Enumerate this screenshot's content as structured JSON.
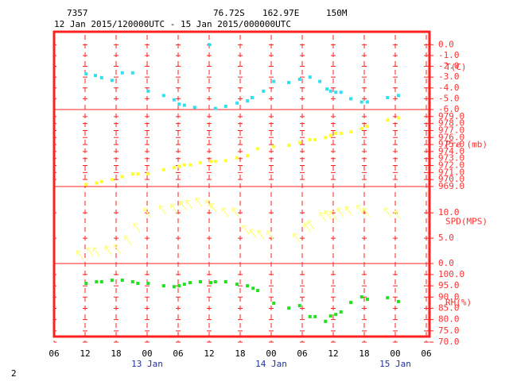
{
  "header": {
    "station": "7357",
    "latitude": "76.72S",
    "longitude": "162.97E",
    "elevation": "150M",
    "period": "12 Jan 2015/120000UTC - 15 Jan 2015/000000UTC"
  },
  "page_number": "2",
  "time_axis": {
    "xlim": [
      6,
      78
    ],
    "xticks": [
      {
        "value": 6,
        "label": "06"
      },
      12,
      18,
      {
        "value": 24,
        "label": "00"
      },
      {
        "value": 30,
        "label": "06"
      },
      {
        "value": 36,
        "label": "12"
      },
      {
        "value": 42,
        "label": "18"
      },
      {
        "value": 48,
        "label": "00"
      },
      {
        "value": 54,
        "label": "06"
      },
      {
        "value": 60,
        "label": "12"
      },
      {
        "value": 66,
        "label": "18"
      },
      {
        "value": 72,
        "label": "00"
      },
      {
        "value": 78,
        "label": "06"
      }
    ],
    "date_labels": [
      {
        "value": 24,
        "label": "13 Jan"
      },
      {
        "value": 48,
        "label": "14 Jan"
      },
      {
        "value": 72,
        "label": "15 Jan"
      }
    ]
  },
  "chart_data": [
    {
      "type": "scatter",
      "ylabel": "T(C)",
      "color": "#30e0f0",
      "xlim": [
        6,
        78
      ],
      "ylim": [
        -6,
        1.2
      ],
      "yticks": [
        {
          "value": 0,
          "label": "0.0"
        },
        {
          "value": -1,
          "label": "-1.0"
        },
        {
          "value": -2,
          "label": "-2.0"
        },
        {
          "value": -3,
          "label": "-3.0"
        },
        {
          "value": -4,
          "label": "-4.0"
        },
        {
          "value": -5,
          "label": "-5.0"
        },
        {
          "value": -6,
          "label": "-6.0"
        }
      ],
      "x": [
        12.2,
        14,
        15.2,
        17.2,
        19.2,
        21.2,
        24.2,
        27.2,
        29.2,
        30.2,
        31.2,
        33.2,
        36,
        37.2,
        39.2,
        41.4,
        43.4,
        44.3,
        46.5,
        48.5,
        51.4,
        53.5,
        55.5,
        57.4,
        58.8,
        59.5,
        60.5,
        61.5,
        63.4,
        65.5,
        66.6,
        70.5,
        72.6
      ],
      "values": [
        -2.7,
        -2.85,
        -3.05,
        -3.3,
        -2.6,
        -2.6,
        -4.3,
        -4.7,
        -5.1,
        -5.5,
        -5.6,
        -5.8,
        0.0,
        -5.9,
        -5.7,
        -5.4,
        -5.2,
        -4.9,
        -4.3,
        -3.4,
        -3.5,
        -3.2,
        -3.0,
        -3.4,
        -4.1,
        -4.3,
        -4.4,
        -4.4,
        -5.0,
        -5.3,
        -5.3,
        -4.9,
        -4.7
      ]
    },
    {
      "type": "scatter",
      "ylabel": "Pre (mb)",
      "color": "#ffff30",
      "xlim": [
        6,
        78
      ],
      "ylim": [
        969,
        980
      ],
      "yticks": [
        {
          "value": 979,
          "label": "979.0"
        },
        {
          "value": 978,
          "label": "978.0"
        },
        {
          "value": 977,
          "label": "977.0"
        },
        {
          "value": 976,
          "label": "976.0"
        },
        {
          "value": 975,
          "label": "975.0"
        },
        {
          "value": 974,
          "label": "974.0"
        },
        {
          "value": 973,
          "label": "973.0"
        },
        {
          "value": 972,
          "label": "972.0"
        },
        {
          "value": 971,
          "label": "971.0"
        },
        {
          "value": 970,
          "label": "970.0"
        },
        {
          "value": 969,
          "label": "969.0"
        }
      ],
      "x": [
        12.2,
        14.2,
        15.2,
        17.2,
        19.2,
        21.2,
        22.2,
        24.2,
        27.2,
        29.2,
        30.2,
        31.2,
        32.3,
        34.3,
        36.3,
        37.2,
        39.2,
        41.4,
        43.4,
        45.4,
        48.5,
        51.4,
        53.5,
        55.5,
        56.5,
        58.5,
        59.5,
        60.5,
        61.5,
        63.4,
        65.5,
        66.6,
        70.5,
        72.6
      ],
      "values": [
        969.3,
        969.5,
        969.7,
        970.0,
        970.4,
        970.8,
        970.8,
        970.8,
        971.4,
        971.7,
        971.9,
        972.1,
        972.1,
        972.4,
        972.6,
        972.6,
        972.7,
        973.1,
        973.4,
        974.4,
        974.7,
        974.9,
        975.3,
        975.7,
        975.7,
        976.0,
        976.3,
        976.6,
        976.6,
        976.8,
        977.3,
        977.6,
        978.5,
        978.8
      ]
    },
    {
      "type": "arrows",
      "ylabel": "SPD(MPS)",
      "color": "#ffff80",
      "xlim": [
        6,
        78
      ],
      "ylim": [
        0,
        15.2
      ],
      "yticks": [
        {
          "value": 10,
          "label": "10.0"
        },
        {
          "value": 5,
          "label": "5.0"
        },
        {
          "value": 0,
          "label": "0.0"
        }
      ],
      "x": [
        11,
        13,
        14.2,
        16.5,
        18.2,
        20.3,
        22,
        24,
        27,
        29.2,
        31,
        32.1,
        34,
        36,
        36.8,
        39.1,
        41.1,
        43.1,
        44.5,
        46,
        47.8,
        52.9,
        55,
        55.7,
        58,
        59,
        60,
        61.4,
        63,
        65.2,
        66.4,
        70.5,
        72.5
      ],
      "values": [
        1.6,
        2.2,
        2.2,
        2.5,
        2.8,
        4.5,
        7.0,
        10.0,
        10.5,
        10.8,
        11.3,
        11.6,
        12.0,
        11.6,
        10.9,
        10.0,
        10.0,
        6.6,
        5.8,
        5.6,
        5.5,
        5.0,
        7.0,
        7.5,
        9.1,
        9.5,
        9.4,
        10.0,
        10.3,
        10.6,
        10.0,
        10.0,
        9.5
      ]
    },
    {
      "type": "scatter",
      "ylabel": "RH(%)",
      "color": "#20e020",
      "xlim": [
        6,
        78
      ],
      "ylim": [
        70,
        104.9
      ],
      "yticks": [
        {
          "value": 100,
          "label": "100.0"
        },
        {
          "value": 95,
          "label": "95.0"
        },
        {
          "value": 90,
          "label": "90.0"
        },
        {
          "value": 85,
          "label": "85.0"
        },
        {
          "value": 80,
          "label": "80.0"
        },
        {
          "value": 75,
          "label": "75.0"
        },
        {
          "value": 70,
          "label": "70.0"
        }
      ],
      "x": [
        12.2,
        14.2,
        15.2,
        17.2,
        19.2,
        21.2,
        22.2,
        24.2,
        27.2,
        29.2,
        30.2,
        31.2,
        32.3,
        34.3,
        36.3,
        37.2,
        39.2,
        41.4,
        43.4,
        44.5,
        45.4,
        48.5,
        51.4,
        53.5,
        55.5,
        56.5,
        58.5,
        59.5,
        60.5,
        61.5,
        63.4,
        65.5,
        66.6,
        70.5,
        72.6
      ],
      "values": [
        96.1,
        96.8,
        96.8,
        97.5,
        97.5,
        96.8,
        96.1,
        96.1,
        95.0,
        94.6,
        95.0,
        95.7,
        96.4,
        96.8,
        96.4,
        96.8,
        96.8,
        95.7,
        95.0,
        93.9,
        92.9,
        87.3,
        85.1,
        86.2,
        81.3,
        81.3,
        79.2,
        81.6,
        82.3,
        83.4,
        87.6,
        90.1,
        89.0,
        89.7,
        88.0
      ]
    }
  ]
}
